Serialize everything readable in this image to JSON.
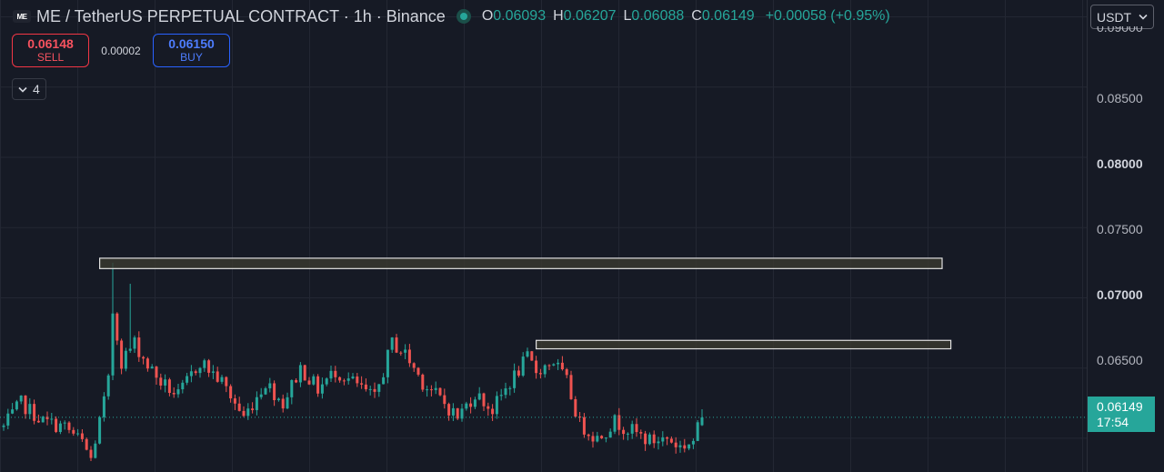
{
  "header": {
    "logo_text": "ME",
    "title": "ME / TetherUS PERPETUAL CONTRACT · 1h · Binance",
    "ohlc": {
      "o_label": "O",
      "o_value": "0.06093",
      "h_label": "H",
      "h_value": "0.06207",
      "l_label": "L",
      "l_value": "0.06088",
      "c_label": "C",
      "c_value": "0.06149",
      "change": "+0.00058 (+0.95%)"
    }
  },
  "trade": {
    "sell_price": "0.06148",
    "sell_label": "SELL",
    "spread": "0.00002",
    "buy_price": "0.06150",
    "buy_label": "BUY"
  },
  "indicators": {
    "count": "4"
  },
  "currency": {
    "selected": "USDT"
  },
  "price_axis": {
    "labels": [
      "0.09000",
      "0.08500",
      "0.08000",
      "0.07500",
      "0.07000",
      "0.06500"
    ],
    "bold_labels": [
      "0.08000",
      "0.07000"
    ],
    "last_price": "0.06149",
    "countdown": "17:54"
  },
  "colors": {
    "background": "#161a25",
    "up": "#26a69a",
    "down": "#ef5350",
    "grid": "#232733",
    "zone_border": "#e0e0e0",
    "zone_fill": "#3a3a30"
  },
  "icons": {
    "logo": "me-logo-icon",
    "live": "live-status-dot-icon",
    "chevron": "chevron-down-icon"
  },
  "chart_data": {
    "type": "candlestick",
    "timeframe": "1h",
    "y_range": [
      0.0576,
      0.0912
    ],
    "last_price": 0.06149,
    "zones": [
      {
        "from": 0.07208,
        "to": 0.07282,
        "start_index": 22,
        "end_index": 215
      },
      {
        "from": 0.06637,
        "to": 0.06697,
        "start_index": 122,
        "end_index": 217
      }
    ],
    "close_path": [
      [
        0,
        0.0608
      ],
      [
        4,
        0.0625
      ],
      [
        9,
        0.0612
      ],
      [
        14,
        0.0608
      ],
      [
        18,
        0.0597
      ],
      [
        20,
        0.0585
      ],
      [
        22,
        0.0612
      ],
      [
        24,
        0.064
      ],
      [
        25,
        0.069
      ],
      [
        27,
        0.0655
      ],
      [
        30,
        0.0668
      ],
      [
        33,
        0.0652
      ],
      [
        36,
        0.064
      ],
      [
        40,
        0.063
      ],
      [
        45,
        0.0655
      ],
      [
        50,
        0.064
      ],
      [
        52,
        0.063
      ],
      [
        55,
        0.0615
      ],
      [
        60,
        0.064
      ],
      [
        64,
        0.0625
      ],
      [
        68,
        0.065
      ],
      [
        72,
        0.0635
      ],
      [
        76,
        0.0648
      ],
      [
        80,
        0.064
      ],
      [
        85,
        0.0628
      ],
      [
        89,
        0.0668
      ],
      [
        92,
        0.066
      ],
      [
        96,
        0.064
      ],
      [
        100,
        0.0628
      ],
      [
        104,
        0.0615
      ],
      [
        108,
        0.0632
      ],
      [
        112,
        0.062
      ],
      [
        116,
        0.064
      ],
      [
        120,
        0.0657
      ],
      [
        122,
        0.0648
      ],
      [
        126,
        0.0655
      ],
      [
        129,
        0.064
      ],
      [
        132,
        0.061
      ],
      [
        136,
        0.06
      ],
      [
        140,
        0.0612
      ],
      [
        144,
        0.0605
      ],
      [
        148,
        0.0598
      ],
      [
        152,
        0.06
      ],
      [
        155,
        0.0594
      ],
      [
        158,
        0.0598
      ],
      [
        160,
        0.0615
      ]
    ]
  }
}
